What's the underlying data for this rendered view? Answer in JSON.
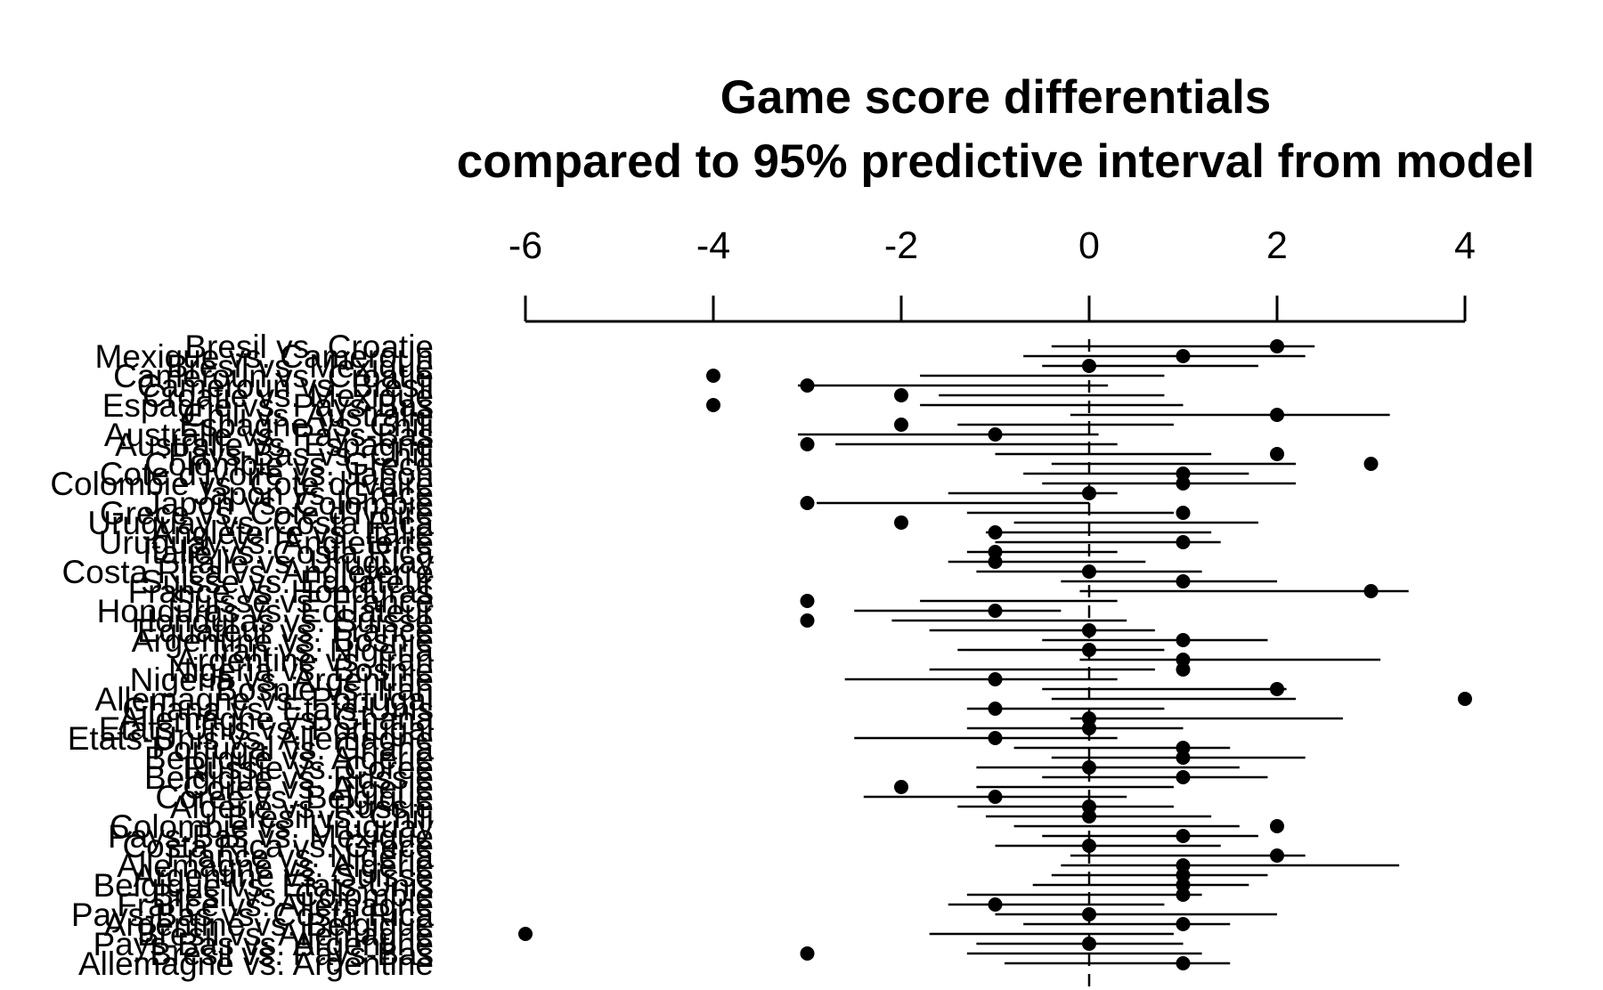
{
  "chart_data": {
    "type": "scatter",
    "title_lines": [
      "Game score differentials",
      "compared to 95% predictive interval from model"
    ],
    "xlabel": "",
    "ylabel": "",
    "xlim": [
      -6,
      4
    ],
    "xticks": [
      -6,
      -4,
      -2,
      0,
      2,
      4
    ],
    "reference_line": 0,
    "grid": false,
    "legend": "none",
    "colors": {
      "ink": "#000000",
      "background": "#ffffff"
    },
    "games": [
      {
        "label": "Bresil vs. Croatie",
        "score_diff": 2,
        "lo": -0.4,
        "hi": 2.4
      },
      {
        "label": "Mexique vs. Cameroun",
        "score_diff": 1,
        "lo": -0.7,
        "hi": 2.3
      },
      {
        "label": "Bresil vs. Mexique",
        "score_diff": 0,
        "lo": -0.5,
        "hi": 1.8
      },
      {
        "label": "Cameroun vs. Croatie",
        "score_diff": -4,
        "lo": -1.8,
        "hi": 0.8
      },
      {
        "label": "Cameroun vs. Bresil",
        "score_diff": -3,
        "lo": -3.1,
        "hi": 0.2
      },
      {
        "label": "Croatie vs. Mexique",
        "score_diff": -2,
        "lo": -1.6,
        "hi": 0.8
      },
      {
        "label": "Espagne vs. Pays-Bas",
        "score_diff": -4,
        "lo": -1.8,
        "hi": 1.0
      },
      {
        "label": "Chili vs. Australie",
        "score_diff": 2,
        "lo": -0.2,
        "hi": 3.2
      },
      {
        "label": "Espagne vs. Chili",
        "score_diff": -2,
        "lo": -1.4,
        "hi": 0.9
      },
      {
        "label": "Australie vs. Pays-Bas",
        "score_diff": -1,
        "lo": -3.1,
        "hi": 0.1
      },
      {
        "label": "Australie vs. Espagne",
        "score_diff": -3,
        "lo": -2.7,
        "hi": 0.3
      },
      {
        "label": "Pays-Bas vs. Chili",
        "score_diff": 2,
        "lo": -1.0,
        "hi": 1.3
      },
      {
        "label": "Colombie vs. Grece",
        "score_diff": 3,
        "lo": -0.4,
        "hi": 2.2
      },
      {
        "label": "Cote d'Ivoire vs. Japon",
        "score_diff": 1,
        "lo": -0.7,
        "hi": 1.7
      },
      {
        "label": "Colombie vs. Cote d'Ivoire",
        "score_diff": 1,
        "lo": -0.5,
        "hi": 2.2
      },
      {
        "label": "Japon vs. Grece",
        "score_diff": 0,
        "lo": -1.5,
        "hi": 0.3
      },
      {
        "label": "Japon vs. Colombie",
        "score_diff": -3,
        "lo": -2.9,
        "hi": 0.0
      },
      {
        "label": "Grece vs. Cote d'Ivoire",
        "score_diff": 1,
        "lo": -1.3,
        "hi": 0.9
      },
      {
        "label": "Uruguay vs. Costa Rica",
        "score_diff": -2,
        "lo": -0.8,
        "hi": 1.8
      },
      {
        "label": "Angleterre vs. Italie",
        "score_diff": -1,
        "lo": -1.1,
        "hi": 1.3
      },
      {
        "label": "Uruguay vs. Angleterre",
        "score_diff": 1,
        "lo": -1.0,
        "hi": 1.4
      },
      {
        "label": "Italie vs. Costa Rica",
        "score_diff": -1,
        "lo": -1.3,
        "hi": 0.3
      },
      {
        "label": "Italie vs. Uruguay",
        "score_diff": -1,
        "lo": -1.5,
        "hi": 0.6
      },
      {
        "label": "Costa Rica vs. Angleterre",
        "score_diff": 0,
        "lo": -1.2,
        "hi": 1.2
      },
      {
        "label": "Suisse vs. Equateur",
        "score_diff": 1,
        "lo": -0.3,
        "hi": 2.0
      },
      {
        "label": "France vs. Honduras",
        "score_diff": 3,
        "lo": -0.1,
        "hi": 3.4
      },
      {
        "label": "Suisse vs. France",
        "score_diff": -3,
        "lo": -1.8,
        "hi": 0.3
      },
      {
        "label": "Honduras vs. Equateur",
        "score_diff": -1,
        "lo": -2.5,
        "hi": -0.3
      },
      {
        "label": "Honduras vs. Suisse",
        "score_diff": -3,
        "lo": -2.1,
        "hi": 0.4
      },
      {
        "label": "Equateur vs. France",
        "score_diff": 0,
        "lo": -1.7,
        "hi": 0.7
      },
      {
        "label": "Argentine vs. Bosnie",
        "score_diff": 1,
        "lo": -0.5,
        "hi": 1.9
      },
      {
        "label": "Iran vs. Nigeria",
        "score_diff": 0,
        "lo": -1.4,
        "hi": 0.8
      },
      {
        "label": "Argentine vs. Iran",
        "score_diff": 1,
        "lo": -0.1,
        "hi": 3.1
      },
      {
        "label": "Nigeria vs. Bosnie",
        "score_diff": 1,
        "lo": -1.7,
        "hi": 0.7
      },
      {
        "label": "Nigeria vs. Argentine",
        "score_diff": -1,
        "lo": -2.6,
        "hi": 0.3
      },
      {
        "label": "Bosnie vs. Iran",
        "score_diff": 2,
        "lo": -0.5,
        "hi": 2.1
      },
      {
        "label": "Allemagne vs. Portugal",
        "score_diff": 4,
        "lo": -0.4,
        "hi": 2.2
      },
      {
        "label": "Ghana vs. Etats-Unis",
        "score_diff": -1,
        "lo": -1.3,
        "hi": 0.8
      },
      {
        "label": "Allemagne vs. Ghana",
        "score_diff": 0,
        "lo": -0.2,
        "hi": 2.7
      },
      {
        "label": "Etats-Unis vs. Portugal",
        "score_diff": 0,
        "lo": -1.3,
        "hi": 1.0
      },
      {
        "label": "Etats-Unis vs. Allemagne",
        "score_diff": -1,
        "lo": -2.5,
        "hi": 0.3
      },
      {
        "label": "Portugal vs. Ghana",
        "score_diff": 1,
        "lo": -0.8,
        "hi": 1.5
      },
      {
        "label": "Belgique vs. Algerie",
        "score_diff": 1,
        "lo": -0.4,
        "hi": 2.3
      },
      {
        "label": "Russie vs. Coree",
        "score_diff": 0,
        "lo": -1.2,
        "hi": 1.6
      },
      {
        "label": "Belgique vs. Russie",
        "score_diff": 1,
        "lo": -0.5,
        "hi": 1.9
      },
      {
        "label": "Coree vs. Algerie",
        "score_diff": -2,
        "lo": -1.2,
        "hi": 0.9
      },
      {
        "label": "Coree vs. Belgique",
        "score_diff": -1,
        "lo": -2.4,
        "hi": 0.4
      },
      {
        "label": "Algerie vs. Russie",
        "score_diff": 0,
        "lo": -1.4,
        "hi": 0.9
      },
      {
        "label": "Bresil vs. Chili",
        "score_diff": 0,
        "lo": -1.1,
        "hi": 1.3
      },
      {
        "label": "Colombie vs. Uruguay",
        "score_diff": 2,
        "lo": -0.8,
        "hi": 1.6
      },
      {
        "label": "Pays-Bas vs. Mexique",
        "score_diff": 1,
        "lo": -0.5,
        "hi": 1.8
      },
      {
        "label": "Costa Rica vs. Grece",
        "score_diff": 0,
        "lo": -1.0,
        "hi": 1.4
      },
      {
        "label": "France vs. Nigeria",
        "score_diff": 2,
        "lo": -0.2,
        "hi": 2.3
      },
      {
        "label": "Allemagne vs. Algerie",
        "score_diff": 1,
        "lo": -0.3,
        "hi": 3.3
      },
      {
        "label": "Argentine vs. Suisse",
        "score_diff": 1,
        "lo": -0.4,
        "hi": 1.9
      },
      {
        "label": "Belgique vs. Etats-Unis",
        "score_diff": 1,
        "lo": -0.6,
        "hi": 1.7
      },
      {
        "label": "Bresil vs. Colombie",
        "score_diff": 1,
        "lo": -1.3,
        "hi": 1.2
      },
      {
        "label": "France vs. Allemagne",
        "score_diff": -1,
        "lo": -1.5,
        "hi": 0.8
      },
      {
        "label": "Pays-Bas vs. Costa Rica",
        "score_diff": 0,
        "lo": -1.0,
        "hi": 2.0
      },
      {
        "label": "Argentine vs. Belgique",
        "score_diff": 1,
        "lo": -0.7,
        "hi": 1.5
      },
      {
        "label": "Bresil vs. Allemagne",
        "score_diff": -6,
        "lo": -1.7,
        "hi": 0.9
      },
      {
        "label": "Pays-Bas vs. Argentine",
        "score_diff": 0,
        "lo": -1.2,
        "hi": 1.0
      },
      {
        "label": "Bresil vs. Pays-Bas",
        "score_diff": -3,
        "lo": -1.3,
        "hi": 1.2
      },
      {
        "label": "Allemagne vs. Argentine",
        "score_diff": 1,
        "lo": -0.9,
        "hi": 1.5
      }
    ]
  }
}
